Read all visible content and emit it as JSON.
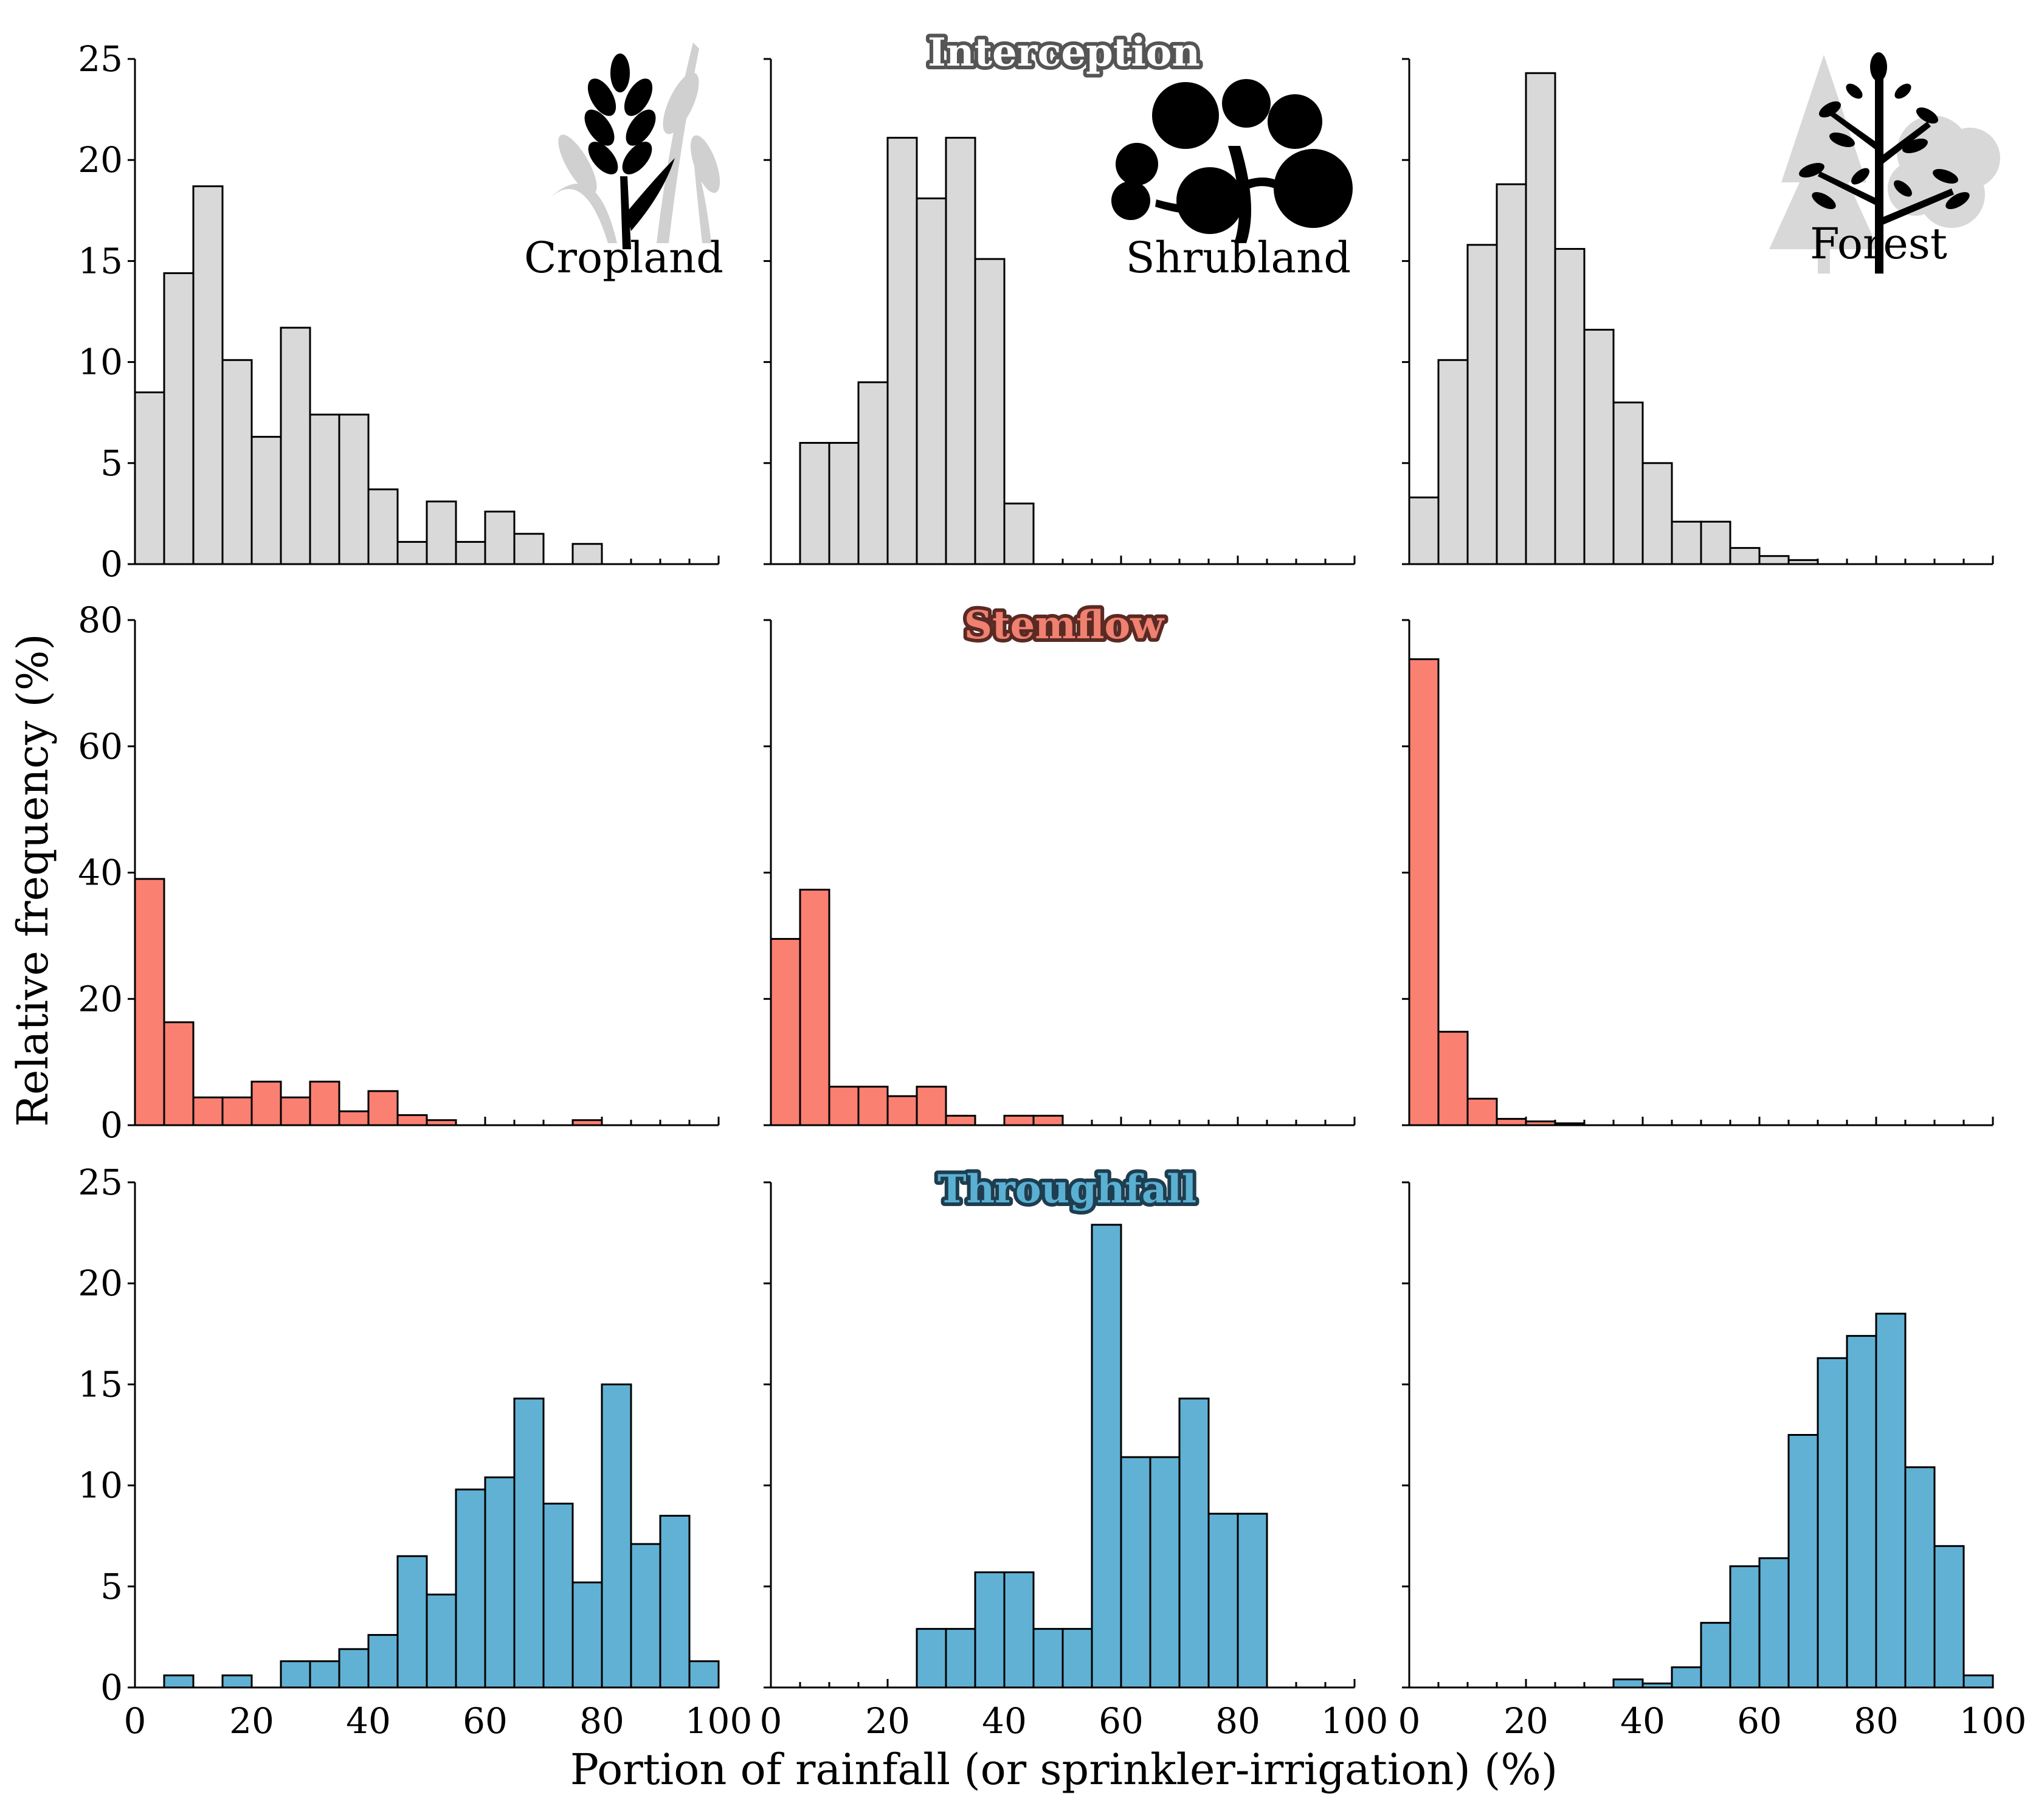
{
  "figure": {
    "ylabel": "Relative frequency (%)",
    "xlabel": "Portion of rainfall (or sprinkler-irrigation) (%)",
    "land_covers": [
      "Cropland",
      "Shrubland",
      "Forest"
    ]
  },
  "colors": {
    "interception": "#d9d9d9",
    "stemflow": "#fa8072",
    "throughfall": "#61b1d4",
    "bar_edge": "#000000"
  },
  "icons": [
    "wheat-icon",
    "shrub-icon",
    "tree-icon"
  ],
  "chart_data": [
    {
      "type": "bar",
      "row_title": "Interception",
      "panel_label": "Cropland",
      "bin_edges_start": 0,
      "bin_width": 5,
      "xlim": [
        0,
        100
      ],
      "ylim": [
        0,
        25
      ],
      "yticks": [
        0,
        5,
        10,
        15,
        20,
        25
      ],
      "xticks": [
        0,
        20,
        40,
        60,
        80,
        100
      ],
      "values": [
        8.5,
        14.4,
        18.7,
        10.1,
        6.3,
        11.7,
        7.4,
        7.4,
        3.7,
        1.1,
        3.1,
        1.1,
        2.6,
        1.5,
        0,
        1.0,
        0,
        0,
        0,
        0
      ]
    },
    {
      "type": "bar",
      "row_title": "Interception",
      "panel_label": "Shrubland",
      "bin_edges_start": 0,
      "bin_width": 5,
      "xlim": [
        0,
        100
      ],
      "ylim": [
        0,
        25
      ],
      "yticks": [
        0,
        5,
        10,
        15,
        20,
        25
      ],
      "xticks": [
        0,
        20,
        40,
        60,
        80,
        100
      ],
      "values": [
        0,
        6.0,
        6.0,
        9.0,
        21.1,
        18.1,
        21.1,
        15.1,
        3.0,
        0,
        0,
        0,
        0,
        0,
        0,
        0,
        0,
        0,
        0,
        0
      ]
    },
    {
      "type": "bar",
      "row_title": "Interception",
      "panel_label": "Forest",
      "bin_edges_start": 0,
      "bin_width": 5,
      "xlim": [
        0,
        100
      ],
      "ylim": [
        0,
        25
      ],
      "yticks": [
        0,
        5,
        10,
        15,
        20,
        25
      ],
      "xticks": [
        0,
        20,
        40,
        60,
        80,
        100
      ],
      "values": [
        3.3,
        10.1,
        15.8,
        18.8,
        24.3,
        15.6,
        11.6,
        8.0,
        5.0,
        2.1,
        2.1,
        0.8,
        0.4,
        0.2,
        0,
        0,
        0,
        0,
        0,
        0
      ]
    },
    {
      "type": "bar",
      "row_title": "Stemflow",
      "panel_label": "Cropland",
      "bin_edges_start": 0,
      "bin_width": 5,
      "xlim": [
        0,
        100
      ],
      "ylim": [
        0,
        80
      ],
      "yticks": [
        0,
        20,
        40,
        60,
        80
      ],
      "xticks": [
        0,
        20,
        40,
        60,
        80,
        100
      ],
      "values": [
        39.0,
        16.3,
        4.4,
        4.4,
        6.9,
        4.4,
        6.9,
        2.2,
        5.4,
        1.6,
        0.8,
        0,
        0,
        0,
        0,
        0.8,
        0,
        0,
        0,
        0
      ]
    },
    {
      "type": "bar",
      "row_title": "Stemflow",
      "panel_label": "Shrubland",
      "bin_edges_start": 0,
      "bin_width": 5,
      "xlim": [
        0,
        100
      ],
      "ylim": [
        0,
        80
      ],
      "yticks": [
        0,
        20,
        40,
        60,
        80
      ],
      "xticks": [
        0,
        20,
        40,
        60,
        80,
        100
      ],
      "values": [
        29.5,
        37.3,
        6.1,
        6.1,
        4.6,
        6.1,
        1.5,
        0,
        1.5,
        1.5,
        0,
        0,
        0,
        0,
        0,
        0,
        0,
        0,
        0,
        0
      ]
    },
    {
      "type": "bar",
      "row_title": "Stemflow",
      "panel_label": "Forest",
      "bin_edges_start": 0,
      "bin_width": 5,
      "xlim": [
        0,
        100
      ],
      "ylim": [
        0,
        80
      ],
      "yticks": [
        0,
        20,
        40,
        60,
        80
      ],
      "xticks": [
        0,
        20,
        40,
        60,
        80,
        100
      ],
      "values": [
        73.8,
        14.8,
        4.2,
        1.0,
        0.6,
        0.3,
        0,
        0,
        0,
        0,
        0,
        0,
        0,
        0,
        0,
        0,
        0,
        0,
        0,
        0
      ]
    },
    {
      "type": "bar",
      "row_title": "Throughfall",
      "panel_label": "Cropland",
      "bin_edges_start": 0,
      "bin_width": 5,
      "xlim": [
        0,
        100
      ],
      "ylim": [
        0,
        25
      ],
      "yticks": [
        0,
        5,
        10,
        15,
        20,
        25
      ],
      "xticks": [
        0,
        20,
        40,
        60,
        80,
        100
      ],
      "values": [
        0,
        0.6,
        0,
        0.6,
        0,
        1.3,
        1.3,
        1.9,
        2.6,
        6.5,
        4.6,
        9.8,
        10.4,
        14.3,
        9.1,
        5.2,
        15.0,
        7.1,
        8.5,
        1.3
      ]
    },
    {
      "type": "bar",
      "row_title": "Throughfall",
      "panel_label": "Shrubland",
      "bin_edges_start": 0,
      "bin_width": 5,
      "xlim": [
        0,
        100
      ],
      "ylim": [
        0,
        25
      ],
      "yticks": [
        0,
        5,
        10,
        15,
        20,
        25
      ],
      "xticks": [
        0,
        20,
        40,
        60,
        80,
        100
      ],
      "values": [
        0,
        0,
        0,
        0,
        0,
        2.9,
        2.9,
        5.7,
        5.7,
        2.9,
        2.9,
        22.9,
        11.4,
        11.4,
        14.3,
        8.6,
        8.6,
        0,
        0,
        0
      ]
    },
    {
      "type": "bar",
      "row_title": "Throughfall",
      "panel_label": "Forest",
      "bin_edges_start": 0,
      "bin_width": 5,
      "xlim": [
        0,
        100
      ],
      "ylim": [
        0,
        25
      ],
      "yticks": [
        0,
        5,
        10,
        15,
        20,
        25
      ],
      "xticks": [
        0,
        20,
        40,
        60,
        80,
        100
      ],
      "values": [
        0,
        0,
        0,
        0,
        0,
        0,
        0,
        0.4,
        0.2,
        1.0,
        3.2,
        6.0,
        6.4,
        12.5,
        16.3,
        17.4,
        18.5,
        10.9,
        7.0,
        0.6
      ]
    }
  ]
}
